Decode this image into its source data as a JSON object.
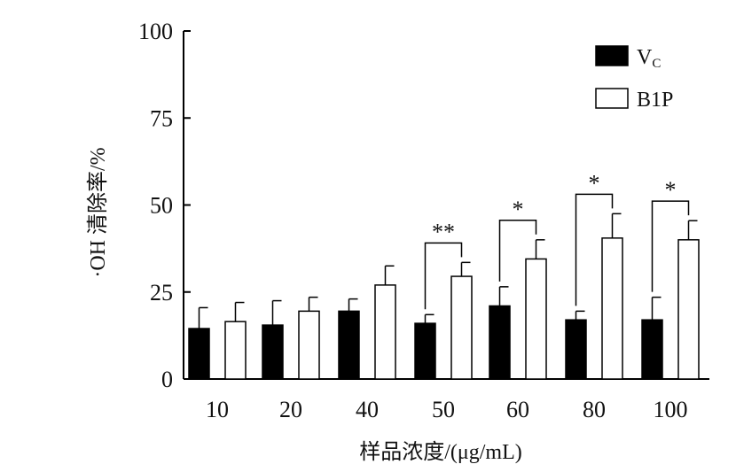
{
  "chart_data": {
    "type": "bar",
    "xlabel": "样品浓度/(μg/mL)",
    "ylabel": "·OH 清除率/%",
    "ylim": [
      0,
      100
    ],
    "yticks": [
      0,
      25,
      50,
      75,
      100
    ],
    "categories": [
      "10",
      "20",
      "40",
      "50",
      "60",
      "80",
      "100"
    ],
    "grid": false,
    "legend_position": "top-right",
    "series": [
      {
        "name": "Vc",
        "legend_main": "V",
        "legend_sub": "C",
        "fill": "#000000",
        "values": [
          14.5,
          15.5,
          19.5,
          16.0,
          21.0,
          17.0,
          17.0
        ],
        "errors": [
          6.0,
          7.0,
          3.5,
          2.5,
          5.5,
          2.5,
          6.5
        ]
      },
      {
        "name": "B1P",
        "fill": "#ffffff",
        "values": [
          16.5,
          19.5,
          27.0,
          29.5,
          34.5,
          40.5,
          40.0
        ],
        "errors": [
          5.5,
          4.0,
          5.5,
          4.0,
          5.5,
          7.0,
          5.5
        ]
      }
    ],
    "annotations": [
      {
        "category": "50",
        "text": "**"
      },
      {
        "category": "60",
        "text": "*"
      },
      {
        "category": "80",
        "text": "*"
      },
      {
        "category": "100",
        "text": "*"
      }
    ]
  }
}
